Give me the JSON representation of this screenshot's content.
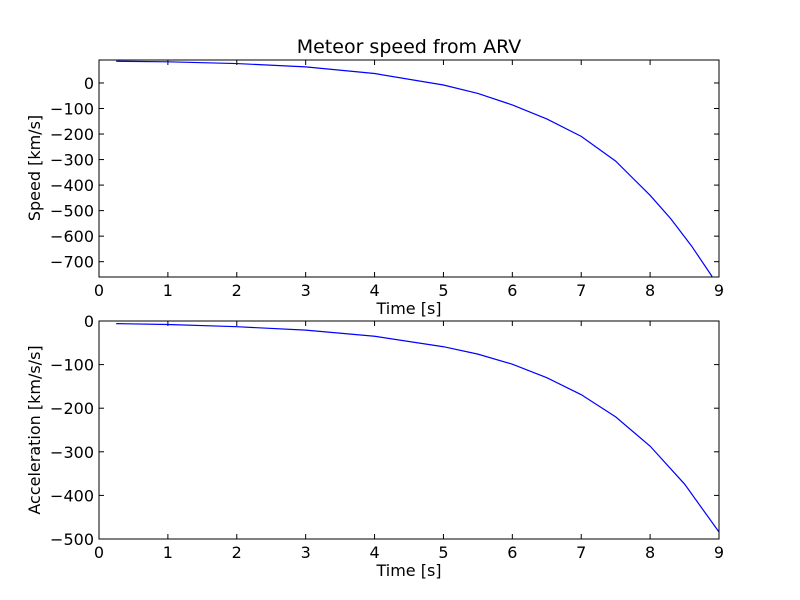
{
  "chart_data": [
    {
      "type": "line",
      "title": "Meteor speed from  ARV",
      "xlabel": "Time [s]",
      "ylabel": "Speed [km/s]",
      "xlim": [
        0,
        9
      ],
      "ylim": [
        -760,
        90
      ],
      "xticks": [
        0,
        1,
        2,
        3,
        4,
        5,
        6,
        7,
        8,
        9
      ],
      "xtick_labels": [
        "0",
        "1",
        "2",
        "3",
        "4",
        "5",
        "6",
        "7",
        "8",
        "9"
      ],
      "yticks": [
        0,
        -100,
        -200,
        -300,
        -400,
        -500,
        -600,
        -700
      ],
      "ytick_labels": [
        "0",
        "−100",
        "−200",
        "−300",
        "−400",
        "−500",
        "−600",
        "−700"
      ],
      "grid": false,
      "color": "#0000ff",
      "series": [
        {
          "x": [
            0.25,
            1,
            2,
            3,
            4,
            5,
            5.5,
            6,
            6.5,
            7,
            7.5,
            8,
            8.3,
            8.6,
            8.9
          ],
          "y": [
            85,
            83,
            76,
            63,
            37,
            -8,
            -41,
            -86,
            -141,
            -209,
            -306,
            -440,
            -532,
            -638,
            -758
          ]
        }
      ]
    },
    {
      "type": "line",
      "title": "",
      "xlabel": "Time [s]",
      "ylabel": "Acceleration [km/s/s]",
      "xlim": [
        0,
        9
      ],
      "ylim": [
        -500,
        0
      ],
      "xticks": [
        0,
        1,
        2,
        3,
        4,
        5,
        6,
        7,
        8,
        9
      ],
      "xtick_labels": [
        "0",
        "1",
        "2",
        "3",
        "4",
        "5",
        "6",
        "7",
        "8",
        "9"
      ],
      "yticks": [
        0,
        -100,
        -200,
        -300,
        -400,
        -500
      ],
      "ytick_labels": [
        "0",
        "−100",
        "−200",
        "−300",
        "−400",
        "−500"
      ],
      "grid": false,
      "color": "#0000ff",
      "series": [
        {
          "x": [
            0.25,
            1,
            2,
            3,
            4,
            5,
            5.5,
            6,
            6.5,
            7,
            7.5,
            8,
            8.5,
            9
          ],
          "y": [
            -6,
            -8,
            -13,
            -21,
            -35,
            -59,
            -76,
            -99,
            -130,
            -169,
            -220,
            -287,
            -374,
            -484
          ]
        }
      ]
    }
  ]
}
